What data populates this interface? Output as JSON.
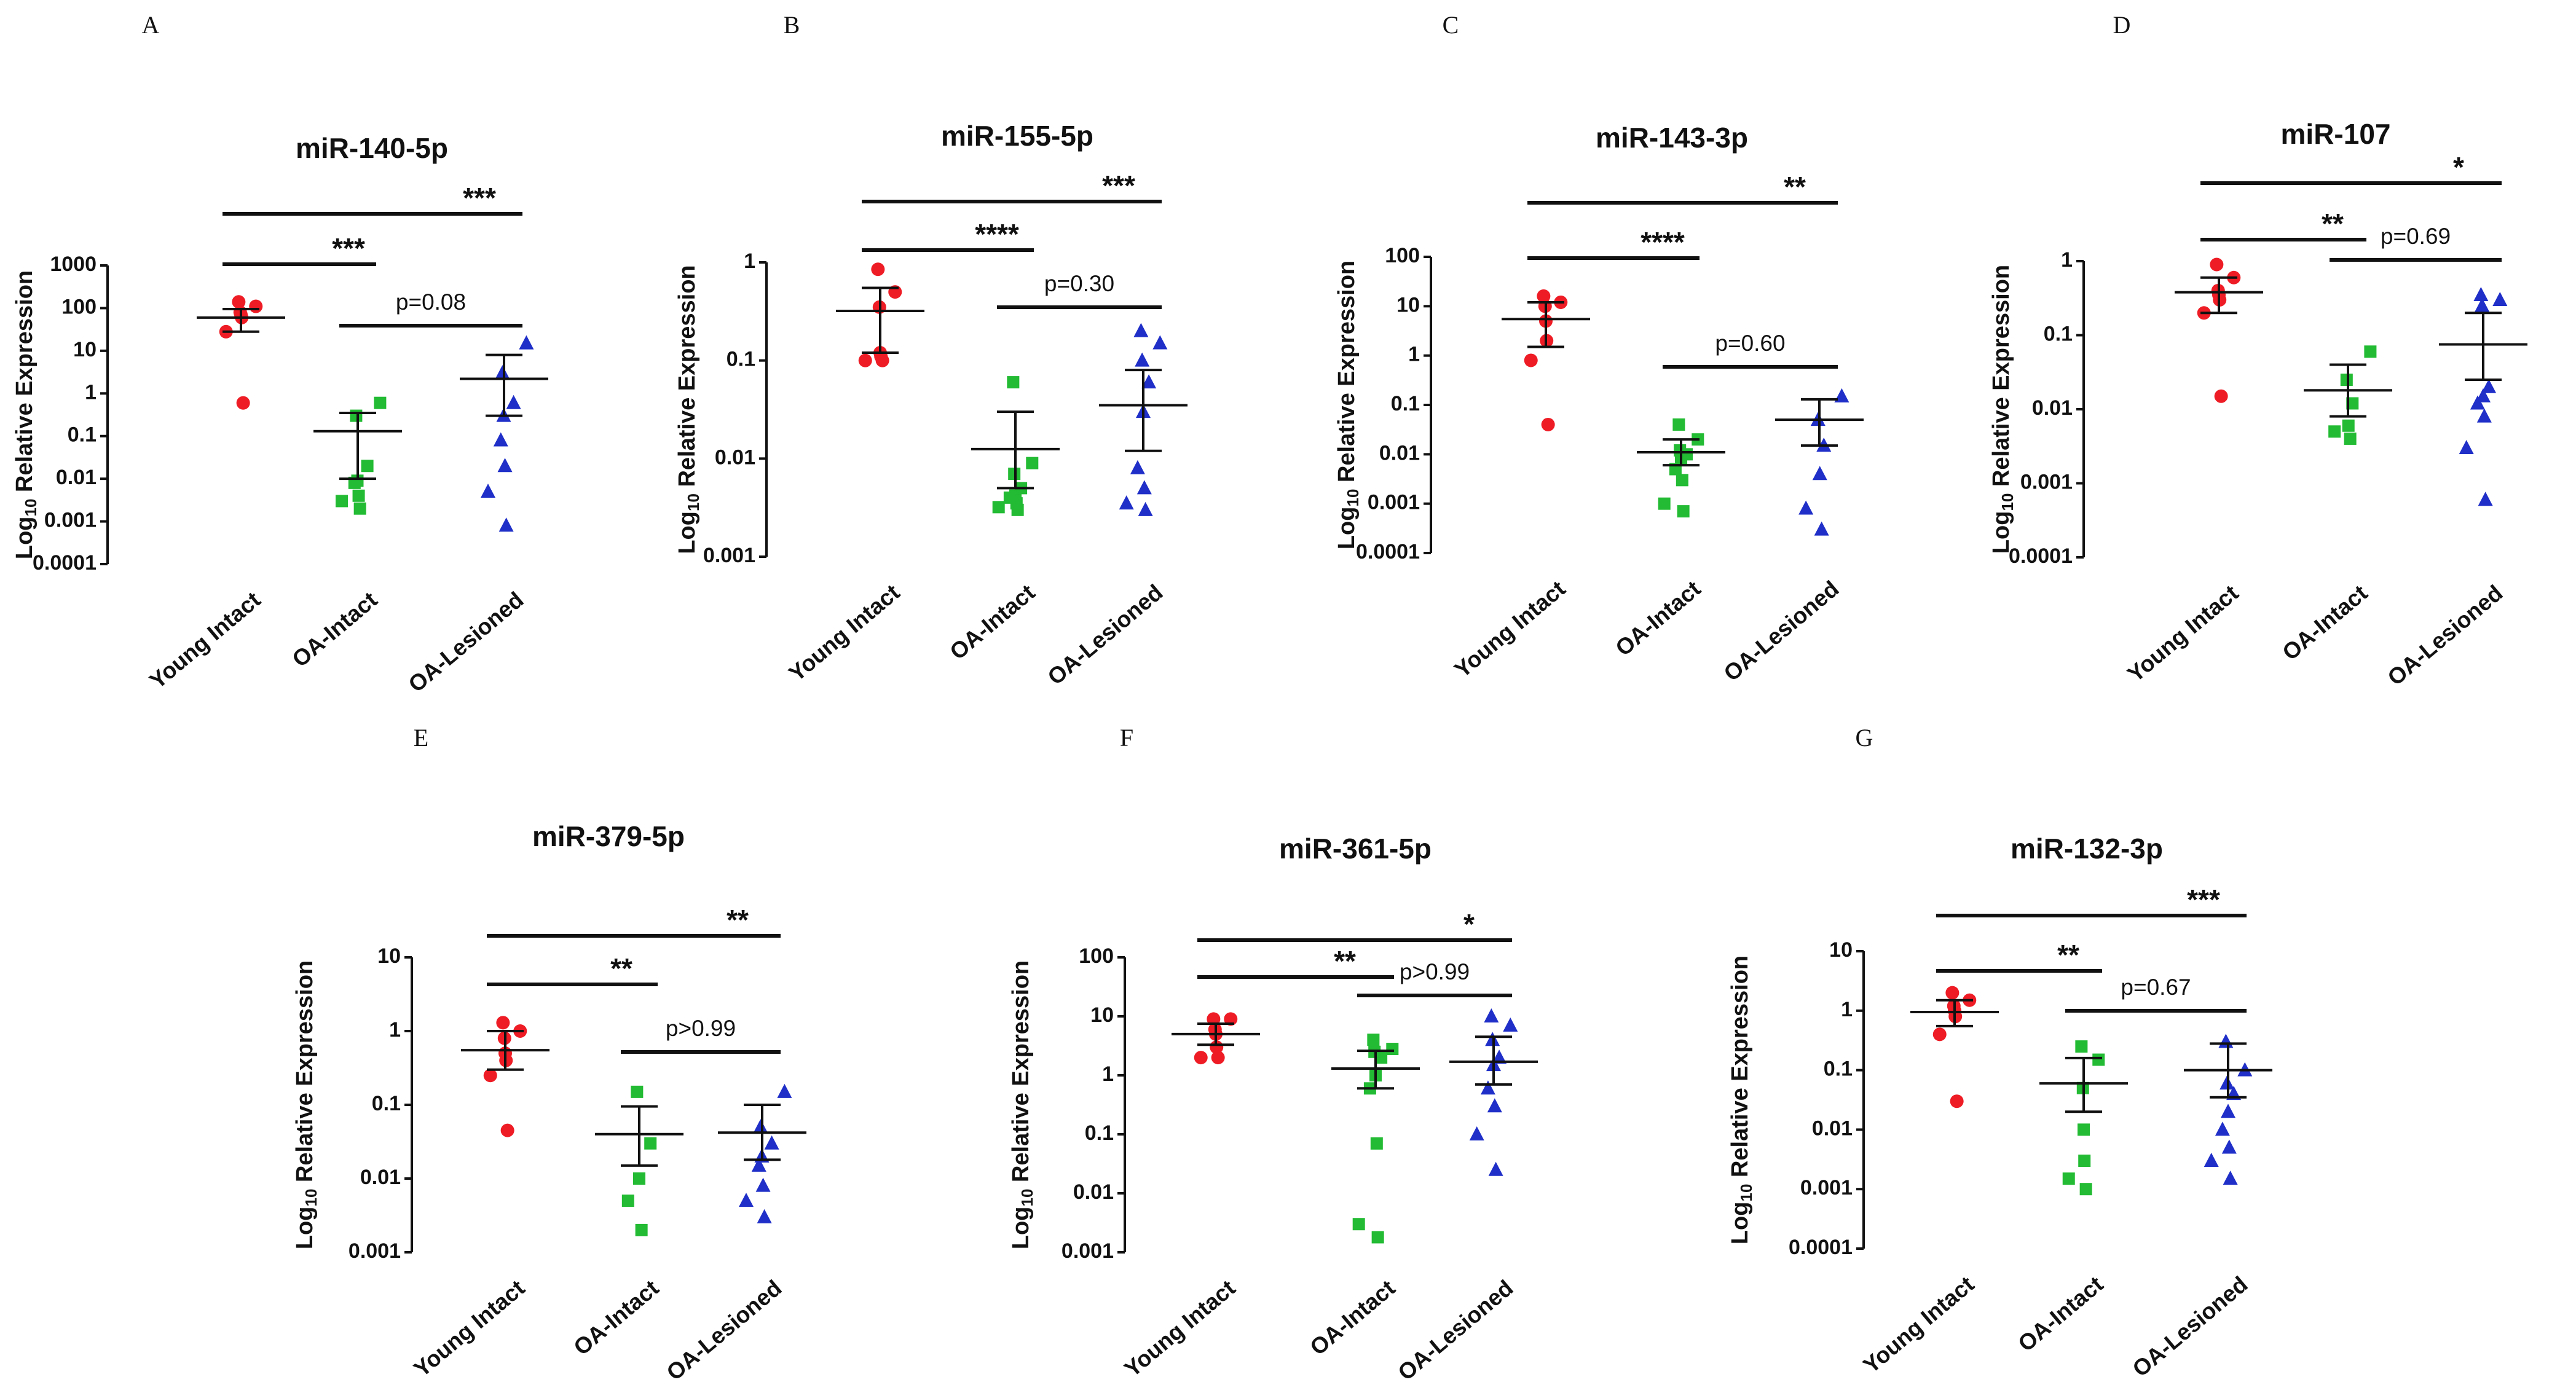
{
  "figure": {
    "categories": [
      "Young Intact",
      "OA-Intact",
      "OA-Lesioned"
    ],
    "ylabel_prefix": "Log",
    "ylabel_sub": "10",
    "ylabel_rest": " Relative Expression",
    "colors": {
      "Young Intact": "#ee1c25",
      "OA-Intact": "#22bb33",
      "OA-Lesioned": "#1f2fc8"
    }
  },
  "chart_data": [
    {
      "type": "scatter",
      "panel_label": "A",
      "title": "miR-140-5p",
      "ylim": [
        0.0001,
        1000
      ],
      "ytick_labels": [
        "0.0001",
        "0.001",
        "0.01",
        "0.1",
        "1",
        "10",
        "100",
        "1000"
      ],
      "series": [
        {
          "name": "Young Intact",
          "marker": "circle",
          "values": [
            0.6,
            28,
            60,
            70,
            80,
            110,
            140
          ],
          "mean": 60,
          "sem_upper": 95,
          "sem_lower": 28
        },
        {
          "name": "OA-Intact",
          "marker": "square",
          "values": [
            0.002,
            0.003,
            0.004,
            0.008,
            0.009,
            0.02,
            0.3,
            0.6
          ],
          "mean": 0.13,
          "sem_upper": 0.35,
          "sem_lower": 0.01
        },
        {
          "name": "OA-Lesioned",
          "marker": "triangle",
          "values": [
            0.0008,
            0.005,
            0.02,
            0.08,
            0.3,
            0.6,
            3,
            15
          ],
          "mean": 2.2,
          "sem_upper": 8,
          "sem_lower": 0.3
        }
      ],
      "comparisons": [
        {
          "from": 0,
          "to": 1,
          "label": "***"
        },
        {
          "from": 0,
          "to": 2,
          "label": "***"
        },
        {
          "from": 1,
          "to": 2,
          "label": "p=0.08"
        }
      ]
    },
    {
      "type": "scatter",
      "panel_label": "B",
      "title": "miR-155-5p",
      "ylim": [
        0.001,
        1
      ],
      "ytick_labels": [
        "0.001",
        "0.01",
        "0.1",
        "1"
      ],
      "series": [
        {
          "name": "Young Intact",
          "marker": "circle",
          "values": [
            0.1,
            0.1,
            0.11,
            0.12,
            0.35,
            0.5,
            0.85
          ],
          "mean": 0.32,
          "sem_upper": 0.55,
          "sem_lower": 0.12
        },
        {
          "name": "OA-Intact",
          "marker": "square",
          "values": [
            0.003,
            0.0032,
            0.0035,
            0.004,
            0.0042,
            0.005,
            0.007,
            0.009,
            0.06
          ],
          "mean": 0.0125,
          "sem_upper": 0.03,
          "sem_lower": 0.005
        },
        {
          "name": "OA-Lesioned",
          "marker": "triangle",
          "values": [
            0.003,
            0.0035,
            0.005,
            0.008,
            0.03,
            0.06,
            0.1,
            0.15,
            0.2
          ],
          "mean": 0.035,
          "sem_upper": 0.08,
          "sem_lower": 0.012
        }
      ],
      "comparisons": [
        {
          "from": 0,
          "to": 1,
          "label": "****"
        },
        {
          "from": 0,
          "to": 2,
          "label": "***"
        },
        {
          "from": 1,
          "to": 2,
          "label": "p=0.30"
        }
      ]
    },
    {
      "type": "scatter",
      "panel_label": "C",
      "title": "miR-143-3p",
      "ylim": [
        0.0001,
        100
      ],
      "ytick_labels": [
        "0.0001",
        "0.001",
        "0.01",
        "0.1",
        "1",
        "10",
        "100"
      ],
      "series": [
        {
          "name": "Young Intact",
          "marker": "circle",
          "values": [
            0.04,
            0.8,
            2,
            5,
            10,
            12,
            16
          ],
          "mean": 5.5,
          "sem_upper": 12,
          "sem_lower": 1.5
        },
        {
          "name": "OA-Intact",
          "marker": "square",
          "values": [
            0.0007,
            0.001,
            0.003,
            0.005,
            0.008,
            0.01,
            0.012,
            0.02,
            0.04
          ],
          "mean": 0.011,
          "sem_upper": 0.02,
          "sem_lower": 0.006
        },
        {
          "name": "OA-Lesioned",
          "marker": "triangle",
          "values": [
            0.0003,
            0.0008,
            0.004,
            0.015,
            0.05,
            0.15
          ],
          "mean": 0.05,
          "sem_upper": 0.13,
          "sem_lower": 0.015
        }
      ],
      "comparisons": [
        {
          "from": 0,
          "to": 1,
          "label": "****"
        },
        {
          "from": 0,
          "to": 2,
          "label": "**"
        },
        {
          "from": 1,
          "to": 2,
          "label": "p=0.60"
        }
      ]
    },
    {
      "type": "scatter",
      "panel_label": "D",
      "title": "miR-107",
      "ylim": [
        0.0001,
        1
      ],
      "ytick_labels": [
        "0.0001",
        "0.001",
        "0.01",
        "0.1",
        "1"
      ],
      "series": [
        {
          "name": "Young Intact",
          "marker": "circle",
          "values": [
            0.015,
            0.2,
            0.3,
            0.35,
            0.4,
            0.6,
            0.9
          ],
          "mean": 0.38,
          "sem_upper": 0.6,
          "sem_lower": 0.2
        },
        {
          "name": "OA-Intact",
          "marker": "square",
          "values": [
            0.004,
            0.005,
            0.006,
            0.012,
            0.025,
            0.06
          ],
          "mean": 0.018,
          "sem_upper": 0.04,
          "sem_lower": 0.008
        },
        {
          "name": "OA-Lesioned",
          "marker": "triangle",
          "values": [
            0.0006,
            0.003,
            0.008,
            0.012,
            0.015,
            0.02,
            0.25,
            0.3,
            0.35
          ],
          "mean": 0.075,
          "sem_upper": 0.2,
          "sem_lower": 0.025
        }
      ],
      "comparisons": [
        {
          "from": 0,
          "to": 1,
          "label": "**"
        },
        {
          "from": 0,
          "to": 2,
          "label": "*"
        },
        {
          "from": 1,
          "to": 2,
          "label": "p=0.69"
        }
      ]
    },
    {
      "type": "scatter",
      "panel_label": "E",
      "title": "miR-379-5p",
      "ylim": [
        0.001,
        10
      ],
      "ytick_labels": [
        "0.001",
        "0.01",
        "0.1",
        "1",
        "10"
      ],
      "series": [
        {
          "name": "Young Intact",
          "marker": "circle",
          "values": [
            0.045,
            0.25,
            0.4,
            0.5,
            0.8,
            1.0,
            1.3
          ],
          "mean": 0.55,
          "sem_upper": 1.0,
          "sem_lower": 0.3
        },
        {
          "name": "OA-Intact",
          "marker": "square",
          "values": [
            0.002,
            0.005,
            0.01,
            0.03,
            0.15
          ],
          "mean": 0.04,
          "sem_upper": 0.095,
          "sem_lower": 0.015
        },
        {
          "name": "OA-Lesioned",
          "marker": "triangle",
          "values": [
            0.003,
            0.005,
            0.008,
            0.015,
            0.02,
            0.03,
            0.05,
            0.15
          ],
          "mean": 0.042,
          "sem_upper": 0.1,
          "sem_lower": 0.018
        }
      ],
      "comparisons": [
        {
          "from": 0,
          "to": 1,
          "label": "**"
        },
        {
          "from": 0,
          "to": 2,
          "label": "**"
        },
        {
          "from": 1,
          "to": 2,
          "label": "p>0.99"
        }
      ]
    },
    {
      "type": "scatter",
      "panel_label": "F",
      "title": "miR-361-5p",
      "ylim": [
        0.001,
        100
      ],
      "ytick_labels": [
        "0.001",
        "0.01",
        "0.1",
        "1",
        "10",
        "100"
      ],
      "series": [
        {
          "name": "Young Intact",
          "marker": "circle",
          "values": [
            2,
            2,
            3,
            5,
            6,
            9,
            9
          ],
          "mean": 5,
          "sem_upper": 7.5,
          "sem_lower": 3.3
        },
        {
          "name": "OA-Intact",
          "marker": "square",
          "values": [
            0.0018,
            0.003,
            0.07,
            0.6,
            1,
            2,
            2.5,
            2.8,
            4
          ],
          "mean": 1.3,
          "sem_upper": 2.6,
          "sem_lower": 0.6
        },
        {
          "name": "OA-Lesioned",
          "marker": "triangle",
          "values": [
            0.025,
            0.1,
            0.3,
            0.6,
            1.5,
            2,
            4,
            7,
            10
          ],
          "mean": 1.7,
          "sem_upper": 4.5,
          "sem_lower": 0.7
        }
      ],
      "comparisons": [
        {
          "from": 0,
          "to": 1,
          "label": "**"
        },
        {
          "from": 0,
          "to": 2,
          "label": "*"
        },
        {
          "from": 1,
          "to": 2,
          "label": "p>0.99"
        }
      ]
    },
    {
      "type": "scatter",
      "panel_label": "G",
      "title": "miR-132-3p",
      "ylim": [
        0.0001,
        10
      ],
      "ytick_labels": [
        "0.0001",
        "0.001",
        "0.01",
        "0.1",
        "1",
        "10"
      ],
      "series": [
        {
          "name": "Young Intact",
          "marker": "circle",
          "values": [
            0.03,
            0.4,
            0.8,
            1,
            1.2,
            1.5,
            2
          ],
          "mean": 0.95,
          "sem_upper": 1.5,
          "sem_lower": 0.55
        },
        {
          "name": "OA-Intact",
          "marker": "square",
          "values": [
            0.001,
            0.0015,
            0.003,
            0.01,
            0.05,
            0.15,
            0.25
          ],
          "mean": 0.06,
          "sem_upper": 0.16,
          "sem_lower": 0.02
        },
        {
          "name": "OA-Lesioned",
          "marker": "triangle",
          "values": [
            0.0015,
            0.003,
            0.005,
            0.01,
            0.02,
            0.04,
            0.06,
            0.1,
            0.3
          ],
          "mean": 0.1,
          "sem_upper": 0.28,
          "sem_lower": 0.035
        }
      ],
      "comparisons": [
        {
          "from": 0,
          "to": 1,
          "label": "**"
        },
        {
          "from": 0,
          "to": 2,
          "label": "***"
        },
        {
          "from": 1,
          "to": 2,
          "label": "p=0.67"
        }
      ]
    }
  ]
}
